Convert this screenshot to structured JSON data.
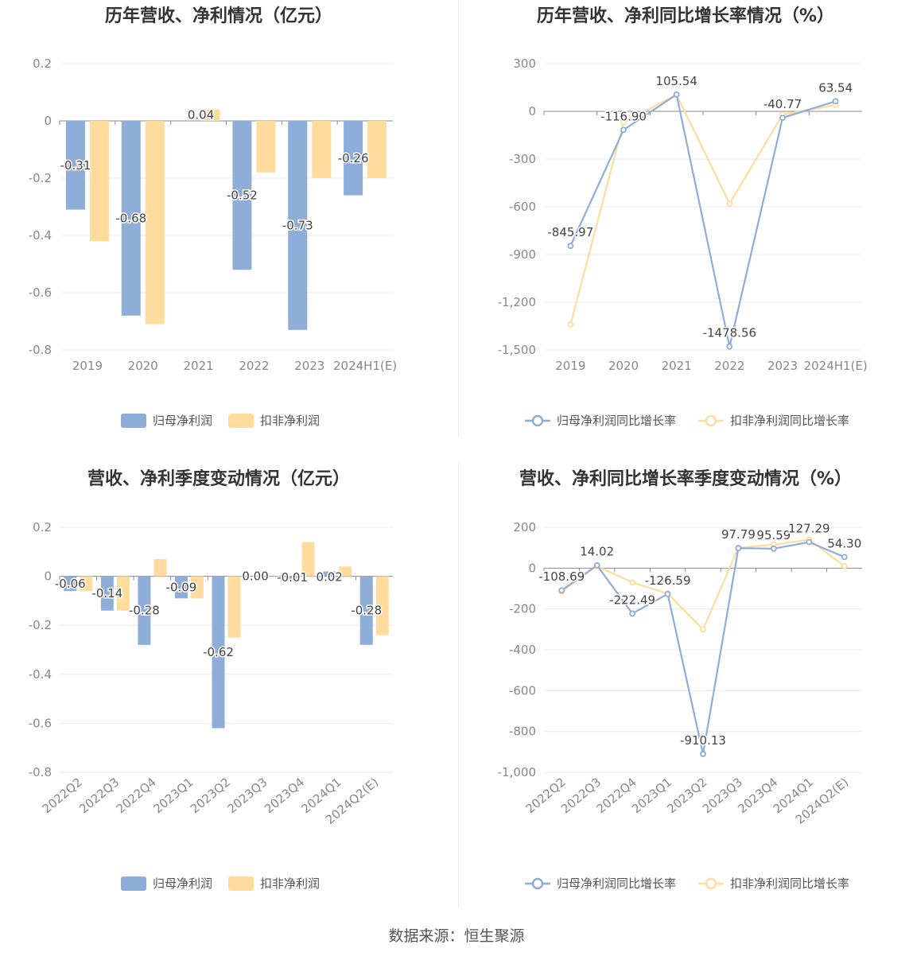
{
  "source": "数据来源：恒生聚源",
  "legend_bar": [
    "归母净利润",
    "扣非净利润"
  ],
  "legend_line": [
    "归母净利润同比增长率",
    "扣非净利润同比增长率"
  ],
  "colors": {
    "primary": "#8eadd9",
    "secondary": "#ffdc9e"
  },
  "chart_data": [
    {
      "type": "bar",
      "title": "历年营收、净利情况（亿元）",
      "categories": [
        "2019",
        "2020",
        "2021",
        "2022",
        "2023",
        "2024H1(E)"
      ],
      "series": [
        {
          "name": "归母净利润",
          "values": [
            -0.31,
            -0.68,
            null,
            -0.52,
            -0.73,
            -0.26
          ]
        },
        {
          "name": "扣非净利润",
          "values": [
            -0.42,
            -0.71,
            0.04,
            -0.18,
            -0.2,
            -0.2
          ]
        }
      ],
      "labels": [
        "-0.31",
        "-0.68",
        "0.04",
        "-0.52",
        "-0.73",
        "-0.26"
      ],
      "label_series": [
        0,
        0,
        1,
        0,
        0,
        0
      ],
      "ylim": [
        -0.8,
        0.2
      ],
      "yticks": [
        "0.2",
        "0",
        "-0.2",
        "-0.4",
        "-0.6",
        "-0.8"
      ],
      "grid": true,
      "legend": "bottom"
    },
    {
      "type": "line",
      "title": "历年营收、净利同比增长率情况（%）",
      "categories": [
        "2019",
        "2020",
        "2021",
        "2022",
        "2023",
        "2024H1(E)"
      ],
      "series": [
        {
          "name": "归母净利润同比增长率",
          "values": [
            -845.97,
            -116.9,
            105.54,
            -1478.56,
            -40.77,
            63.54
          ]
        },
        {
          "name": "扣非净利润同比增长率",
          "values": [
            -1340,
            -70,
            105,
            -580,
            -20,
            40
          ]
        }
      ],
      "labels": [
        "-845.97",
        "-116.90",
        "105.54",
        "-1478.56",
        "-40.77",
        "63.54"
      ],
      "ylim": [
        -1500,
        300
      ],
      "yticks": [
        "300",
        "0",
        "-300",
        "-600",
        "-900",
        "-1,200",
        "-1,500"
      ],
      "grid": true,
      "legend": "bottom"
    },
    {
      "type": "bar",
      "title": "营收、净利季度变动情况（亿元）",
      "categories": [
        "2022Q2",
        "2022Q3",
        "2022Q4",
        "2023Q1",
        "2023Q2",
        "2023Q3",
        "2023Q4",
        "2024Q1",
        "2024Q2(E)"
      ],
      "series": [
        {
          "name": "归母净利润",
          "values": [
            -0.06,
            -0.14,
            -0.28,
            -0.09,
            -0.62,
            0.0,
            -0.01,
            0.02,
            -0.28
          ]
        },
        {
          "name": "扣非净利润",
          "values": [
            -0.06,
            -0.14,
            0.07,
            -0.09,
            -0.25,
            0.0,
            0.14,
            0.04,
            -0.24
          ]
        }
      ],
      "labels": [
        "-0.06",
        "-0.14",
        "-0.28",
        "-0.09",
        "-0.62",
        "0.00",
        "-0.01",
        "0.02",
        "-0.28"
      ],
      "ylim": [
        -0.8,
        0.2
      ],
      "yticks": [
        "0.2",
        "0",
        "-0.2",
        "-0.4",
        "-0.6",
        "-0.8"
      ],
      "grid": true,
      "legend": "bottom"
    },
    {
      "type": "line",
      "title": "营收、净利同比增长率季度变动情况（%）",
      "categories": [
        "2022Q2",
        "2022Q3",
        "2022Q4",
        "2023Q1",
        "2023Q2",
        "2023Q3",
        "2023Q4",
        "2024Q1",
        "2024Q2(E)"
      ],
      "series": [
        {
          "name": "归母净利润同比增长率",
          "values": [
            -108.69,
            14.02,
            -222.49,
            -126.59,
            -910.13,
            97.79,
            95.59,
            127.29,
            54.3
          ]
        },
        {
          "name": "扣非净利润同比增长率",
          "values": [
            -115,
            10,
            -70,
            -125,
            -300,
            100,
            115,
            140,
            10
          ]
        }
      ],
      "labels": [
        "-108.69",
        "14.02",
        "-222.49",
        "-126.59",
        "-910.13",
        "97.79",
        "95.59",
        "127.29",
        "54.30"
      ],
      "ylim": [
        -1000,
        200
      ],
      "yticks": [
        "200",
        "0",
        "-200",
        "-400",
        "-600",
        "-800",
        "-1,000"
      ],
      "grid": true,
      "legend": "bottom"
    }
  ]
}
